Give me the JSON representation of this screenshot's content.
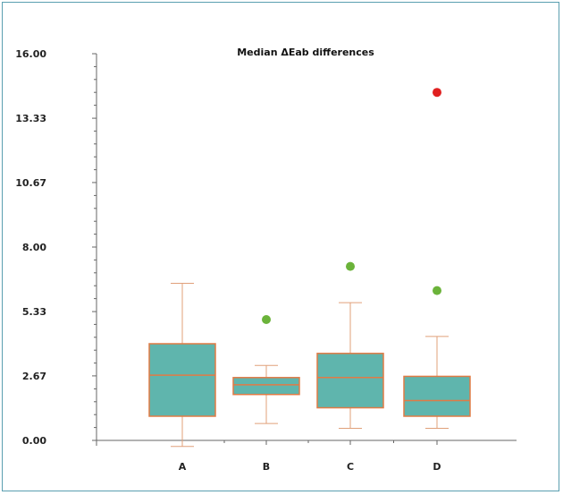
{
  "chart_data": {
    "type": "box",
    "title": "Median ΔEab differences",
    "xlabel": "",
    "ylabel": "",
    "ylim": [
      0,
      16
    ],
    "yticks": [
      "0.00",
      "2.67",
      "5.33",
      "8.00",
      "10.67",
      "13.33",
      "16.00"
    ],
    "categories": [
      "A",
      "B",
      "C",
      "D"
    ],
    "boxes": [
      {
        "name": "A",
        "whisker_low": -0.25,
        "q1": 1.0,
        "median": 2.7,
        "q3": 4.0,
        "whisker_high": 6.5,
        "outliers": []
      },
      {
        "name": "B",
        "whisker_low": 0.7,
        "q1": 1.9,
        "median": 2.3,
        "q3": 2.6,
        "whisker_high": 3.1,
        "outliers": [
          {
            "value": 5.0,
            "type": "mild"
          }
        ]
      },
      {
        "name": "C",
        "whisker_low": 0.5,
        "q1": 1.35,
        "median": 2.6,
        "q3": 3.6,
        "whisker_high": 5.7,
        "outliers": [
          {
            "value": 7.2,
            "type": "mild"
          }
        ]
      },
      {
        "name": "D",
        "whisker_low": 0.5,
        "q1": 1.0,
        "median": 1.65,
        "q3": 2.65,
        "whisker_high": 4.3,
        "outliers": [
          {
            "value": 6.2,
            "type": "mild"
          },
          {
            "value": 14.4,
            "type": "extreme"
          }
        ]
      }
    ],
    "grid": false,
    "legend": "none"
  },
  "colors": {
    "box_fill": "#5fb5ad",
    "box_stroke": "#e07b45",
    "whisker": "#e0a07a",
    "axis": "#666666",
    "mild_outlier": "#6bb33a",
    "extreme_outlier": "#e02020",
    "frame": "#5a9fb0"
  }
}
